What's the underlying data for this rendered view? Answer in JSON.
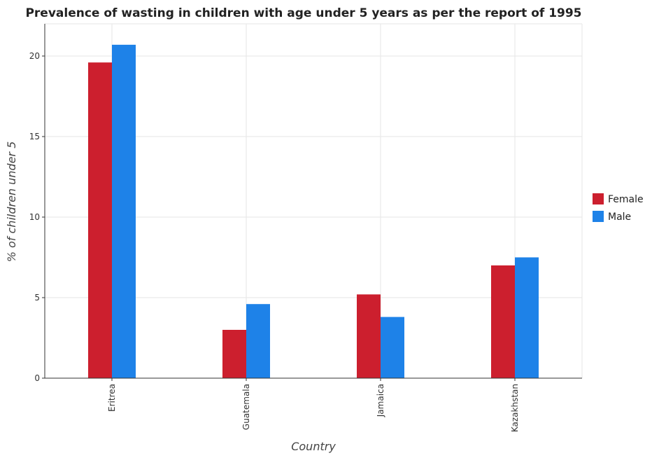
{
  "chart_data": {
    "type": "bar",
    "title": "Prevalence of wasting in children with age under 5 years as per the report of 1995",
    "xlabel": "Country",
    "ylabel": "% of children under 5",
    "categories": [
      "Eritrea",
      "Guatemala",
      "Jamaica",
      "Kazakhstan"
    ],
    "series": [
      {
        "name": "Female",
        "color": "#cc1f2e",
        "values": [
          19.6,
          3.0,
          5.2,
          7.0
        ]
      },
      {
        "name": "Male",
        "color": "#1e82e8",
        "values": [
          20.7,
          4.6,
          3.8,
          7.5
        ]
      }
    ],
    "ylim": [
      0,
      22
    ],
    "yticks": [
      0,
      5,
      10,
      15,
      20
    ],
    "grid": true,
    "legend_position": "right"
  }
}
